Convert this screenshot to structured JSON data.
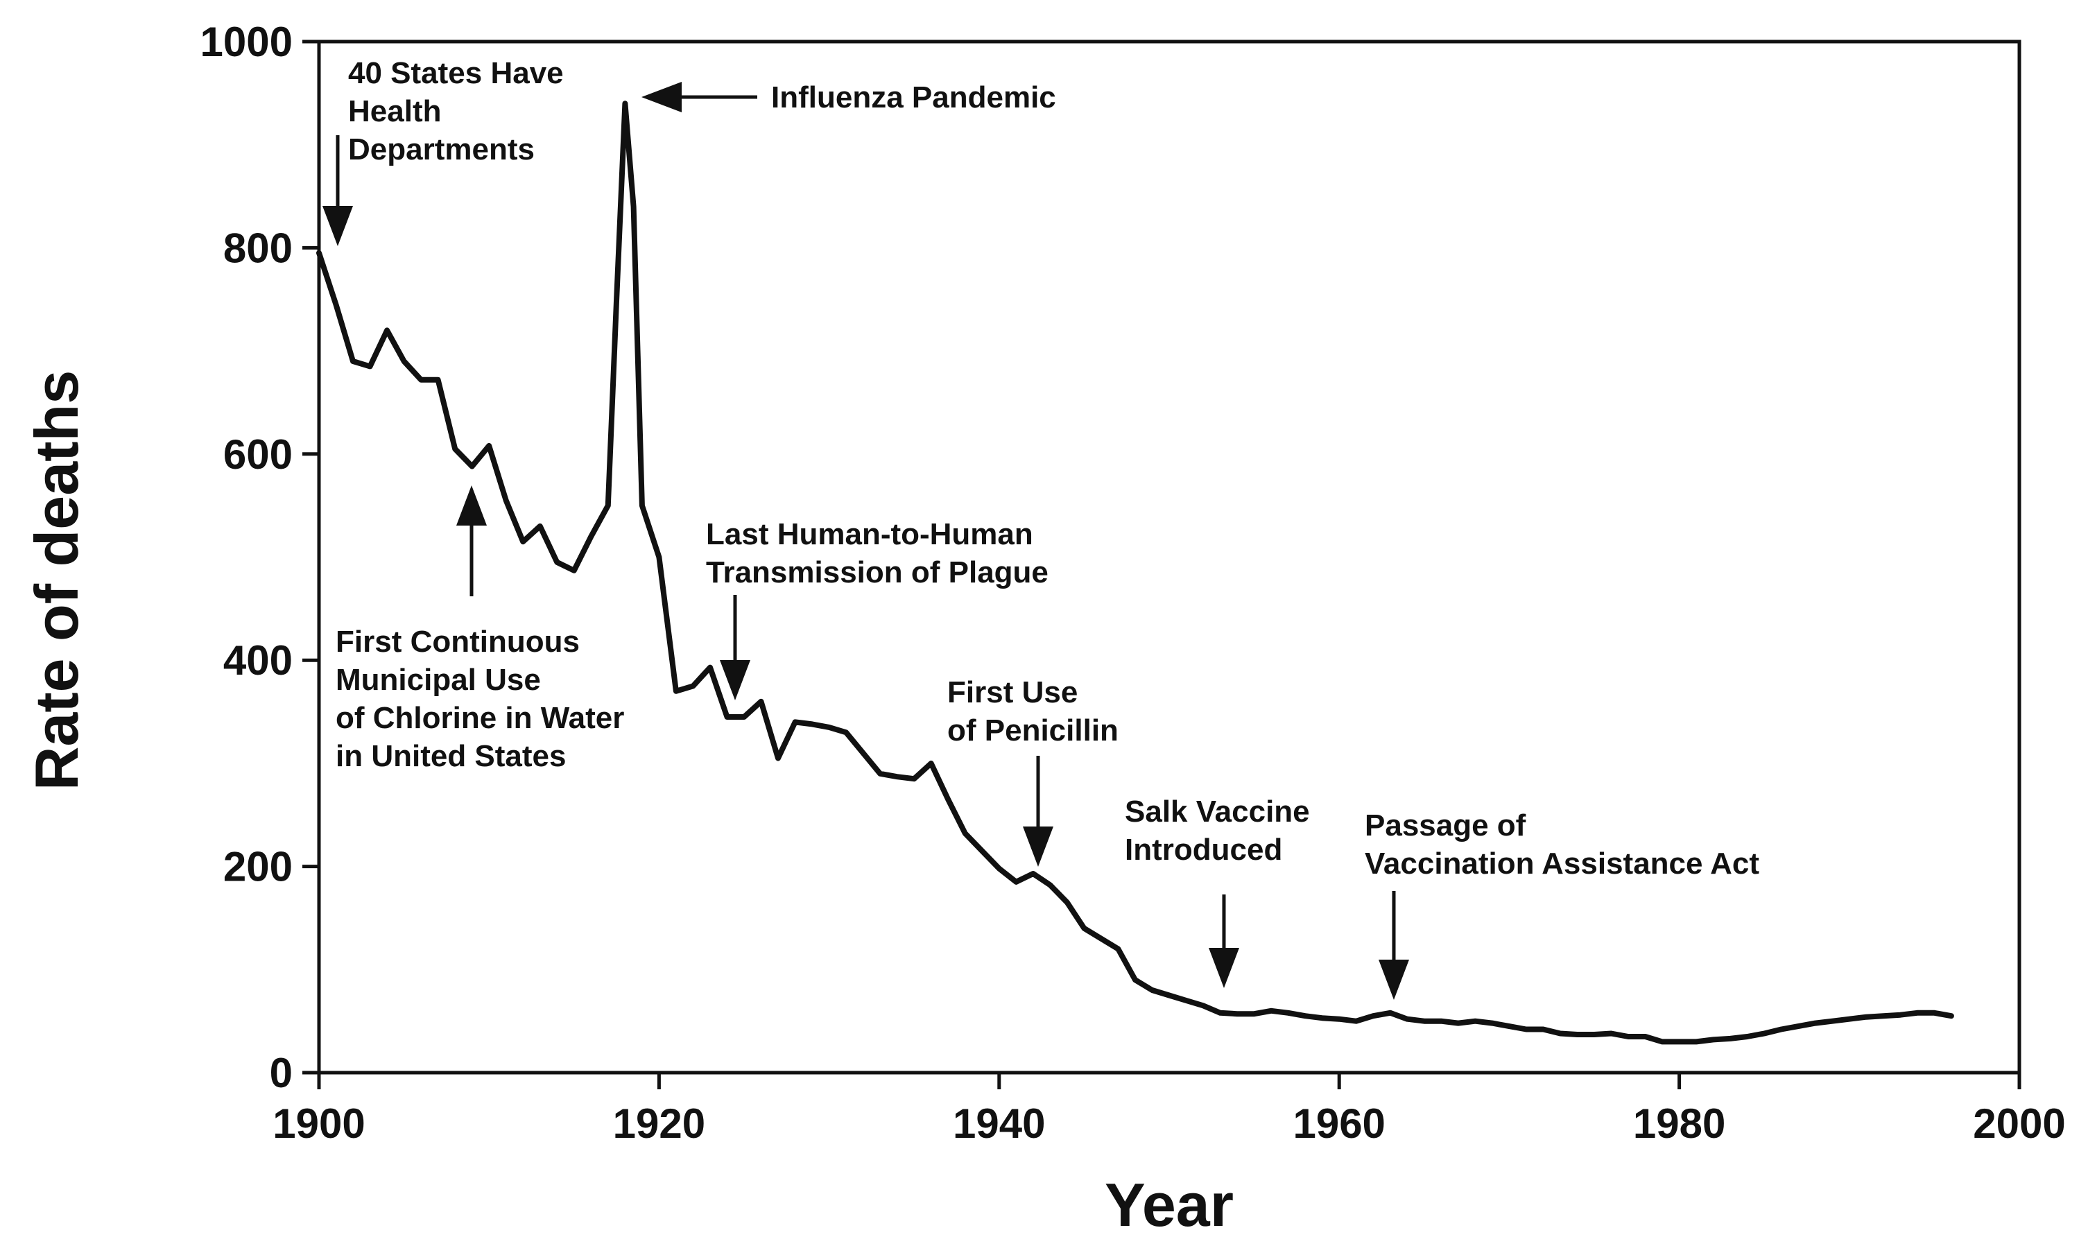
{
  "chart_data": {
    "type": "line",
    "title": "",
    "xlabel": "Year",
    "ylabel": "Rate of deaths",
    "xlim": [
      1900,
      2000
    ],
    "ylim": [
      0,
      1000
    ],
    "x_ticks": [
      1900,
      1920,
      1940,
      1960,
      1980,
      2000
    ],
    "y_ticks": [
      0,
      200,
      400,
      600,
      800,
      1000
    ],
    "grid": false,
    "legend": "none",
    "series": [
      {
        "color": "#111111",
        "x": [
          1900,
          1901,
          1902,
          1903,
          1904,
          1905,
          1906,
          1907,
          1908,
          1909,
          1910,
          1911,
          1912,
          1913,
          1914,
          1915,
          1916,
          1917,
          1917.5,
          1918,
          1918.5,
          1919,
          1920,
          1921,
          1922,
          1923,
          1924,
          1925,
          1926,
          1927,
          1928,
          1929,
          1930,
          1931,
          1932,
          1933,
          1934,
          1935,
          1936,
          1937,
          1938,
          1939,
          1940,
          1941,
          1942,
          1943,
          1944,
          1945,
          1946,
          1947,
          1948,
          1949,
          1950,
          1951,
          1952,
          1953,
          1954,
          1955,
          1956,
          1957,
          1958,
          1959,
          1960,
          1961,
          1962,
          1963,
          1964,
          1965,
          1966,
          1967,
          1968,
          1969,
          1970,
          1971,
          1972,
          1973,
          1974,
          1975,
          1976,
          1977,
          1978,
          1979,
          1980,
          1981,
          1982,
          1983,
          1984,
          1985,
          1986,
          1987,
          1988,
          1989,
          1990,
          1991,
          1992,
          1993,
          1994,
          1995,
          1996
        ],
        "y": [
          795,
          745,
          690,
          685,
          720,
          690,
          672,
          672,
          605,
          588,
          608,
          555,
          515,
          530,
          495,
          487,
          520,
          550,
          750,
          940,
          840,
          550,
          500,
          370,
          375,
          393,
          345,
          345,
          360,
          305,
          340,
          338,
          335,
          330,
          310,
          290,
          287,
          285,
          300,
          265,
          232,
          215,
          198,
          185,
          193,
          182,
          165,
          140,
          130,
          120,
          90,
          80,
          75,
          70,
          65,
          58,
          57,
          57,
          60,
          58,
          55,
          53,
          52,
          50,
          55,
          58,
          52,
          50,
          50,
          48,
          50,
          48,
          45,
          42,
          42,
          38,
          37,
          37,
          38,
          35,
          35,
          30,
          30,
          30,
          32,
          33,
          35,
          38,
          42,
          45,
          48,
          50,
          52,
          54,
          55,
          56,
          58,
          58,
          55
        ]
      }
    ],
    "annotations": [
      {
        "lines": [
          "40 States Have",
          "Health",
          "Departments"
        ],
        "year": 1901
      },
      {
        "lines": [
          "Influenza Pandemic"
        ],
        "year": 1918.5
      },
      {
        "lines": [
          "First Continuous",
          "Municipal Use",
          "of Chlorine in Water",
          "in United States"
        ],
        "year": 1908.5
      },
      {
        "lines": [
          "Last Human-to-Human",
          "Transmission of Plague"
        ],
        "year": 1924.5
      },
      {
        "lines": [
          "First Use",
          "of Penicillin"
        ],
        "year": 1942.5
      },
      {
        "lines": [
          "Salk Vaccine",
          "Introduced"
        ],
        "year": 1953.5
      },
      {
        "lines": [
          "Passage of",
          "Vaccination Assistance Act"
        ],
        "year": 1963.5
      }
    ]
  }
}
